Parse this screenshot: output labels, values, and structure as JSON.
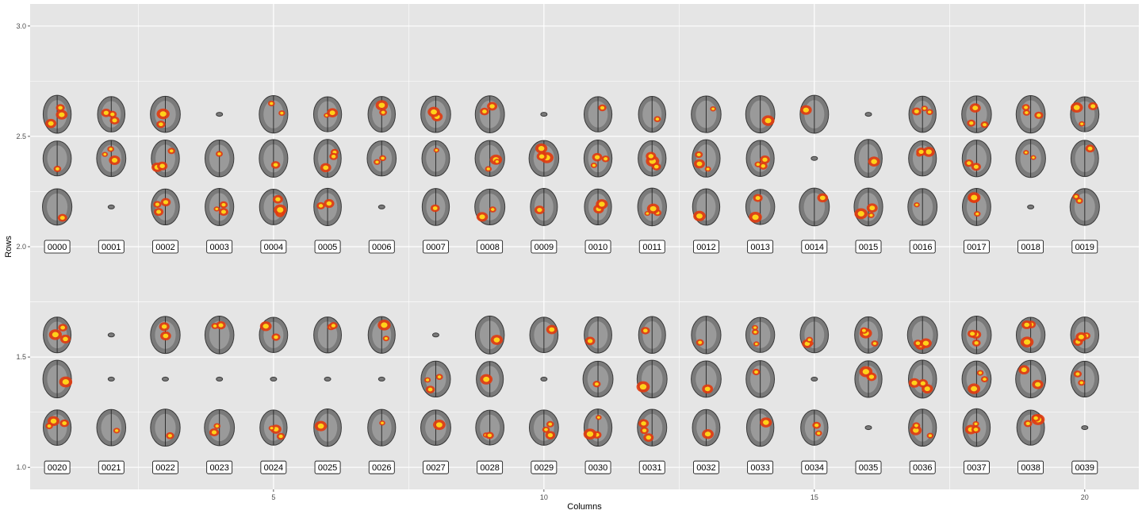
{
  "chart_data": {
    "type": "scatter",
    "xlabel": "Columns",
    "ylabel": "Rows",
    "xlim": [
      0.5,
      21.0
    ],
    "ylim": [
      0.9,
      3.1
    ],
    "x_major_ticks": [
      5,
      10,
      15,
      20
    ],
    "x_minor_ticks": [
      2.5,
      7.5,
      12.5,
      17.5
    ],
    "y_major_ticks": [
      1.0,
      1.5,
      2.0,
      2.5,
      3.0
    ],
    "y_tick_labels": [
      "1.0",
      "1.5",
      "2.0",
      "2.5",
      "3.0"
    ],
    "y_minor_ticks": [
      1.25,
      1.75,
      2.25,
      2.75
    ],
    "grid": true,
    "panel_background": "#e5e5e5",
    "grid_color": "#ffffff",
    "slice_colors": [
      "#7a7a7a",
      "#e23b0e",
      "#ffd21a"
    ],
    "labels": [
      {
        "x": 1,
        "y": 2,
        "text": "0000"
      },
      {
        "x": 2,
        "y": 2,
        "text": "0001"
      },
      {
        "x": 3,
        "y": 2,
        "text": "0002"
      },
      {
        "x": 4,
        "y": 2,
        "text": "0003"
      },
      {
        "x": 5,
        "y": 2,
        "text": "0004"
      },
      {
        "x": 6,
        "y": 2,
        "text": "0005"
      },
      {
        "x": 7,
        "y": 2,
        "text": "0006"
      },
      {
        "x": 8,
        "y": 2,
        "text": "0007"
      },
      {
        "x": 9,
        "y": 2,
        "text": "0008"
      },
      {
        "x": 10,
        "y": 2,
        "text": "0009"
      },
      {
        "x": 11,
        "y": 2,
        "text": "0010"
      },
      {
        "x": 12,
        "y": 2,
        "text": "0011"
      },
      {
        "x": 13,
        "y": 2,
        "text": "0012"
      },
      {
        "x": 14,
        "y": 2,
        "text": "0013"
      },
      {
        "x": 15,
        "y": 2,
        "text": "0014"
      },
      {
        "x": 16,
        "y": 2,
        "text": "0015"
      },
      {
        "x": 17,
        "y": 2,
        "text": "0016"
      },
      {
        "x": 18,
        "y": 2,
        "text": "0017"
      },
      {
        "x": 19,
        "y": 2,
        "text": "0018"
      },
      {
        "x": 20,
        "y": 2,
        "text": "0019"
      },
      {
        "x": 1,
        "y": 1,
        "text": "0020"
      },
      {
        "x": 2,
        "y": 1,
        "text": "0021"
      },
      {
        "x": 3,
        "y": 1,
        "text": "0022"
      },
      {
        "x": 4,
        "y": 1,
        "text": "0023"
      },
      {
        "x": 5,
        "y": 1,
        "text": "0024"
      },
      {
        "x": 6,
        "y": 1,
        "text": "0025"
      },
      {
        "x": 7,
        "y": 1,
        "text": "0026"
      },
      {
        "x": 8,
        "y": 1,
        "text": "0027"
      },
      {
        "x": 9,
        "y": 1,
        "text": "0028"
      },
      {
        "x": 10,
        "y": 1,
        "text": "0029"
      },
      {
        "x": 11,
        "y": 1,
        "text": "0030"
      },
      {
        "x": 12,
        "y": 1,
        "text": "0031"
      },
      {
        "x": 13,
        "y": 1,
        "text": "0032"
      },
      {
        "x": 14,
        "y": 1,
        "text": "0033"
      },
      {
        "x": 15,
        "y": 1,
        "text": "0034"
      },
      {
        "x": 16,
        "y": 1,
        "text": "0035"
      },
      {
        "x": 17,
        "y": 1,
        "text": "0036"
      },
      {
        "x": 18,
        "y": 1,
        "text": "0037"
      },
      {
        "x": 19,
        "y": 1,
        "text": "0038"
      },
      {
        "x": 20,
        "y": 1,
        "text": "0039"
      }
    ],
    "slice_row_offsets": [
      0.6,
      0.4,
      0.18
    ]
  }
}
